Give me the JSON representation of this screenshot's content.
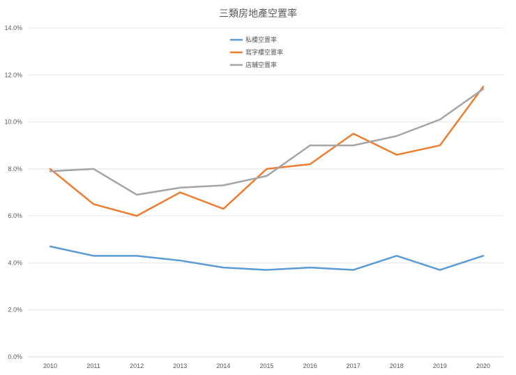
{
  "chart_data": {
    "type": "line",
    "title": "三類房地產空置率",
    "xlabel": "",
    "ylabel": "",
    "categories": [
      "2010",
      "2011",
      "2012",
      "2013",
      "2014",
      "2015",
      "2016",
      "2017",
      "2018",
      "2019",
      "2020"
    ],
    "ylim": [
      0,
      14
    ],
    "yticks": [
      0,
      2,
      4,
      6,
      8,
      10,
      12,
      14
    ],
    "ytick_labels": [
      "0.0%",
      "2.0%",
      "4.0%",
      "6.0%",
      "8.0%",
      "10.0%",
      "12.0%",
      "14.0%"
    ],
    "grid": true,
    "legend_position": "top-center",
    "series": [
      {
        "name": "私樓空置率",
        "color": "#5B9BD5",
        "values": [
          4.7,
          4.3,
          4.3,
          4.1,
          3.8,
          3.7,
          3.8,
          3.7,
          4.3,
          3.7,
          4.3
        ]
      },
      {
        "name": "寫字樓空置率",
        "color": "#ED7D31",
        "values": [
          8.0,
          6.5,
          6.0,
          7.0,
          6.3,
          8.0,
          8.2,
          9.5,
          8.6,
          9.0,
          11.5
        ]
      },
      {
        "name": "店舖空置率",
        "color": "#A5A5A5",
        "values": [
          7.9,
          8.0,
          6.9,
          7.2,
          7.3,
          7.7,
          9.0,
          9.0,
          9.4,
          10.1,
          11.4
        ]
      }
    ]
  }
}
